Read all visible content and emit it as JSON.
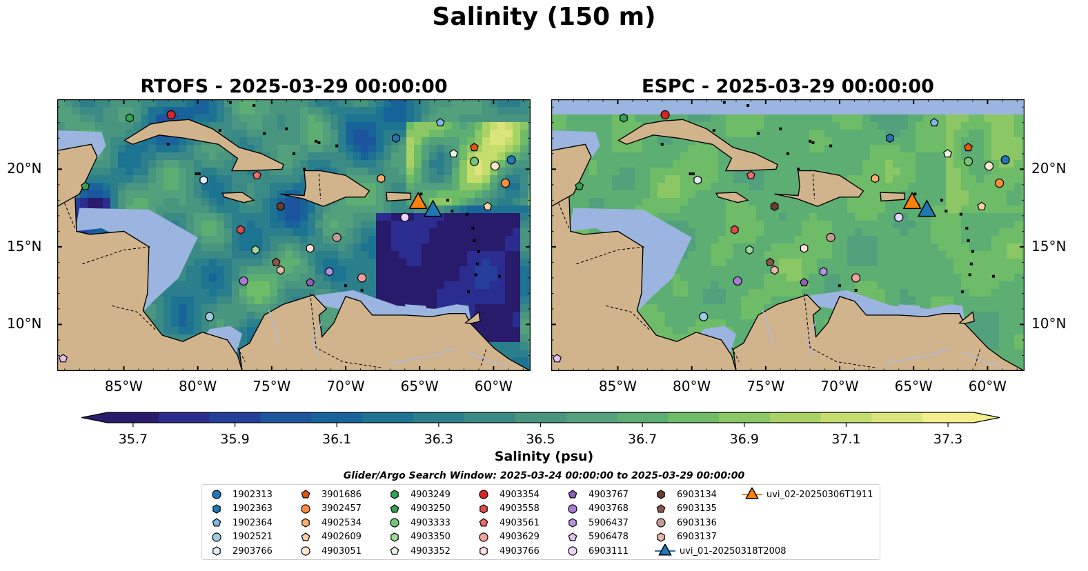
{
  "title": "Salinity (150 m)",
  "colors": {
    "ocean_shallow": "#9bb5e0",
    "land": "#d2b48c",
    "cmap": [
      "#281b6b",
      "#2a2d8f",
      "#253e9c",
      "#1c559e",
      "#18649a",
      "#1d7392",
      "#2b7f8c",
      "#3a8a85",
      "#489580",
      "#52a07c",
      "#5cae73",
      "#6ebb68",
      "#8bc764",
      "#a9d266",
      "#c5dd6c",
      "#dce57b",
      "#f5ee8c"
    ]
  },
  "panels": [
    {
      "title": "RTOFS - 2025-03-29 00:00:00",
      "model": "rtofs"
    },
    {
      "title": "ESPC - 2025-03-29 00:00:00",
      "model": "espc"
    }
  ],
  "chart_data": {
    "type": "heatmap",
    "title": "Salinity (150 m)",
    "xlim": [
      -89.5,
      -57.5
    ],
    "ylim": [
      7.0,
      24.5
    ],
    "xticks": [
      -85,
      -80,
      -75,
      -70,
      -65,
      -60
    ],
    "xtick_labels": [
      "85°W",
      "80°W",
      "75°W",
      "70°W",
      "65°W",
      "60°W"
    ],
    "yticks": [
      10,
      15,
      20
    ],
    "ytick_labels": [
      "10°N",
      "15°N",
      "20°N"
    ],
    "colorbar": {
      "label": "Salinity (psu)",
      "min": 35.65,
      "max": 37.35,
      "extend": "both",
      "ticks": [
        35.7,
        35.9,
        36.1,
        36.3,
        36.5,
        36.7,
        36.9,
        37.1,
        37.3
      ],
      "tick_labels": [
        "35.7",
        "35.9",
        "36.1",
        "36.3",
        "36.5",
        "36.7",
        "36.9",
        "37.1",
        "37.3"
      ]
    },
    "legend_title": "Glider/Argo Search Window: 2025-03-24 00:00:00 to 2025-03-29 00:00:00",
    "floats": [
      {
        "name": "1902313",
        "color": "#1f77b4",
        "shape": "circle",
        "lon": -58.8,
        "lat": 20.6
      },
      {
        "name": "1902363",
        "color": "#1f77b4",
        "shape": "hexagon",
        "lon": -66.6,
        "lat": 22.0
      },
      {
        "name": "1902364",
        "color": "#7fb6e3",
        "shape": "pentagon",
        "lon": -63.6,
        "lat": 23.0
      },
      {
        "name": "1902521",
        "color": "#9ecae1",
        "shape": "circle",
        "lon": -79.2,
        "lat": 10.5
      },
      {
        "name": "2903766",
        "color": "#deebf7",
        "shape": "hexagon",
        "lon": -79.6,
        "lat": 19.3
      },
      {
        "name": "3901686",
        "color": "#e6550d",
        "shape": "pentagon",
        "lon": -61.3,
        "lat": 21.4
      },
      {
        "name": "3902457",
        "color": "#fd8d3c",
        "shape": "circle",
        "lon": -59.2,
        "lat": 19.1
      },
      {
        "name": "4902534",
        "color": "#fdae6b",
        "shape": "hexagon",
        "lon": -67.6,
        "lat": 19.4
      },
      {
        "name": "4902609",
        "color": "#fdd0a2",
        "shape": "pentagon",
        "lon": -60.4,
        "lat": 17.6
      },
      {
        "name": "4903051",
        "color": "#fee6ce",
        "shape": "circle",
        "lon": -59.9,
        "lat": 20.2
      },
      {
        "name": "4903249",
        "color": "#31a354",
        "shape": "hexagon",
        "lon": -84.6,
        "lat": 23.3
      },
      {
        "name": "4903250",
        "color": "#31a354",
        "shape": "pentagon",
        "lon": -87.6,
        "lat": 18.9
      },
      {
        "name": "4903333",
        "color": "#74c476",
        "shape": "circle",
        "lon": -61.3,
        "lat": 20.5
      },
      {
        "name": "4903350",
        "color": "#a1d99b",
        "shape": "hexagon",
        "lon": -76.1,
        "lat": 14.8
      },
      {
        "name": "4903352",
        "color": "#e5f5e0",
        "shape": "pentagon",
        "lon": -62.7,
        "lat": 21.0
      },
      {
        "name": "4903354",
        "color": "#d62728",
        "shape": "circle",
        "lon": -81.8,
        "lat": 23.5
      },
      {
        "name": "4903558",
        "color": "#de4b4b",
        "shape": "hexagon",
        "lon": -77.1,
        "lat": 16.1
      },
      {
        "name": "4903561",
        "color": "#ef6a6a",
        "shape": "pentagon",
        "lon": -76.0,
        "lat": 19.6
      },
      {
        "name": "4903629",
        "color": "#f4a09c",
        "shape": "circle",
        "lon": -68.9,
        "lat": 13.0
      },
      {
        "name": "4903766",
        "color": "#fde0dd",
        "shape": "hexagon",
        "lon": -72.4,
        "lat": 14.9
      },
      {
        "name": "4903767",
        "color": "#8e60b8",
        "shape": "pentagon",
        "lon": -72.4,
        "lat": 12.7
      },
      {
        "name": "4903768",
        "color": "#a87cd0",
        "shape": "circle",
        "lon": -76.9,
        "lat": 12.8
      },
      {
        "name": "5906437",
        "color": "#b593e0",
        "shape": "hexagon",
        "lon": -71.1,
        "lat": 13.4
      },
      {
        "name": "5906478",
        "color": "#dcc3f0",
        "shape": "pentagon",
        "lon": -89.1,
        "lat": 7.8
      },
      {
        "name": "6903111",
        "color": "#e9d4f7",
        "shape": "circle",
        "lon": -66.0,
        "lat": 16.9
      },
      {
        "name": "6903134",
        "color": "#6b3e2e",
        "shape": "hexagon",
        "lon": -74.4,
        "lat": 17.6
      },
      {
        "name": "6903135",
        "color": "#8c564b",
        "shape": "pentagon",
        "lon": -74.7,
        "lat": 14.0
      },
      {
        "name": "6903136",
        "color": "#c49c94",
        "shape": "circle",
        "lon": -70.6,
        "lat": 15.6
      },
      {
        "name": "6903137",
        "color": "#e7b8a8",
        "shape": "hexagon",
        "lon": -74.4,
        "lat": 13.5
      }
    ],
    "gliders": [
      {
        "name": "uvi_01-20250318T2008",
        "color": "#1f77b4",
        "lon": -64.1,
        "lat": 17.4
      },
      {
        "name": "uvi_02-20250306T1911",
        "color": "#ff7f0e",
        "lon": -65.1,
        "lat": 17.9
      }
    ]
  }
}
